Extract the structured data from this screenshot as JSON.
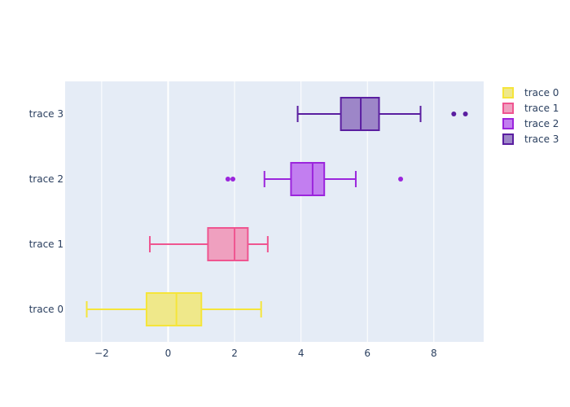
{
  "chart_data": {
    "type": "box",
    "orientation": "horizontal",
    "title": "",
    "xlabel": "",
    "ylabel": "",
    "xlim": [
      -3.1,
      9.5
    ],
    "x_ticks": [
      -2,
      0,
      2,
      4,
      6,
      8
    ],
    "x_tick_labels": [
      "−2",
      "0",
      "2",
      "4",
      "6",
      "8"
    ],
    "grid": true,
    "legend_position": "right",
    "series": [
      {
        "name": "trace 0",
        "color": "#f5e53a",
        "fill": "#efe88a",
        "whisker_low": -2.45,
        "q1": -0.65,
        "median": 0.25,
        "q3": 1.0,
        "whisker_high": 2.8,
        "outliers": []
      },
      {
        "name": "trace 1",
        "color": "#ef5590",
        "fill": "#efa0bf",
        "whisker_low": -0.55,
        "q1": 1.2,
        "median": 2.0,
        "q3": 2.4,
        "whisker_high": 3.0,
        "outliers": []
      },
      {
        "name": "trace 2",
        "color": "#9b25dc",
        "fill": "#c27ef0",
        "whisker_low": 2.9,
        "q1": 3.7,
        "median": 4.35,
        "q3": 4.7,
        "whisker_high": 5.65,
        "outliers": [
          1.8,
          1.95,
          7.0
        ]
      },
      {
        "name": "trace 3",
        "color": "#5a1ea0",
        "fill": "#9d86c8",
        "whisker_low": 3.9,
        "q1": 5.2,
        "median": 5.8,
        "q3": 6.35,
        "whisker_high": 7.6,
        "outliers": [
          8.6,
          8.95
        ]
      }
    ]
  }
}
